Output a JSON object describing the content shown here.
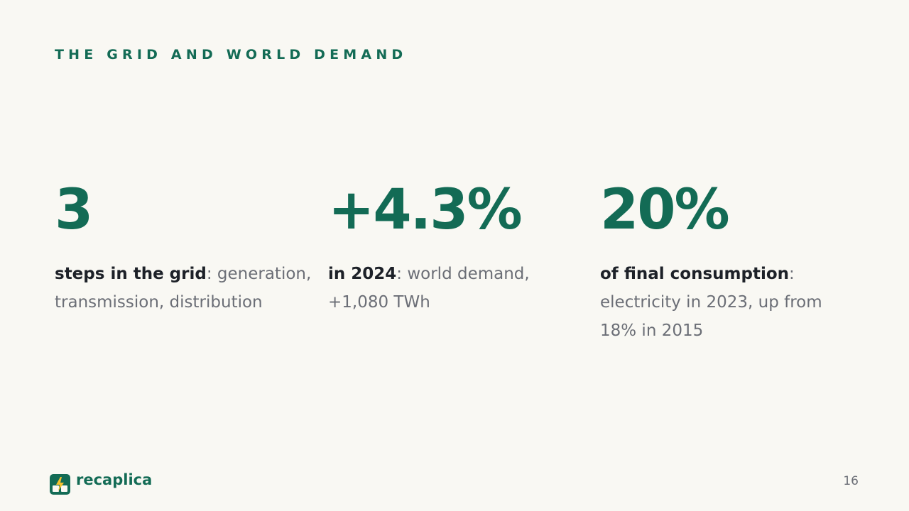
{
  "header": {
    "title": "THE GRID AND WORLD DEMAND"
  },
  "stats": [
    {
      "value": "3",
      "label": "steps in the grid",
      "description": ": generation, transmission, distribution"
    },
    {
      "value": "+4.3%",
      "label": "in 2024",
      "description": ": world demand, +1,080 TWh"
    },
    {
      "value": "20%",
      "label": "of final consumption",
      "description": ": electricity in 2023, up from 18% in 2015"
    }
  ],
  "footer": {
    "brand": "recaplica",
    "page_number": "16"
  }
}
